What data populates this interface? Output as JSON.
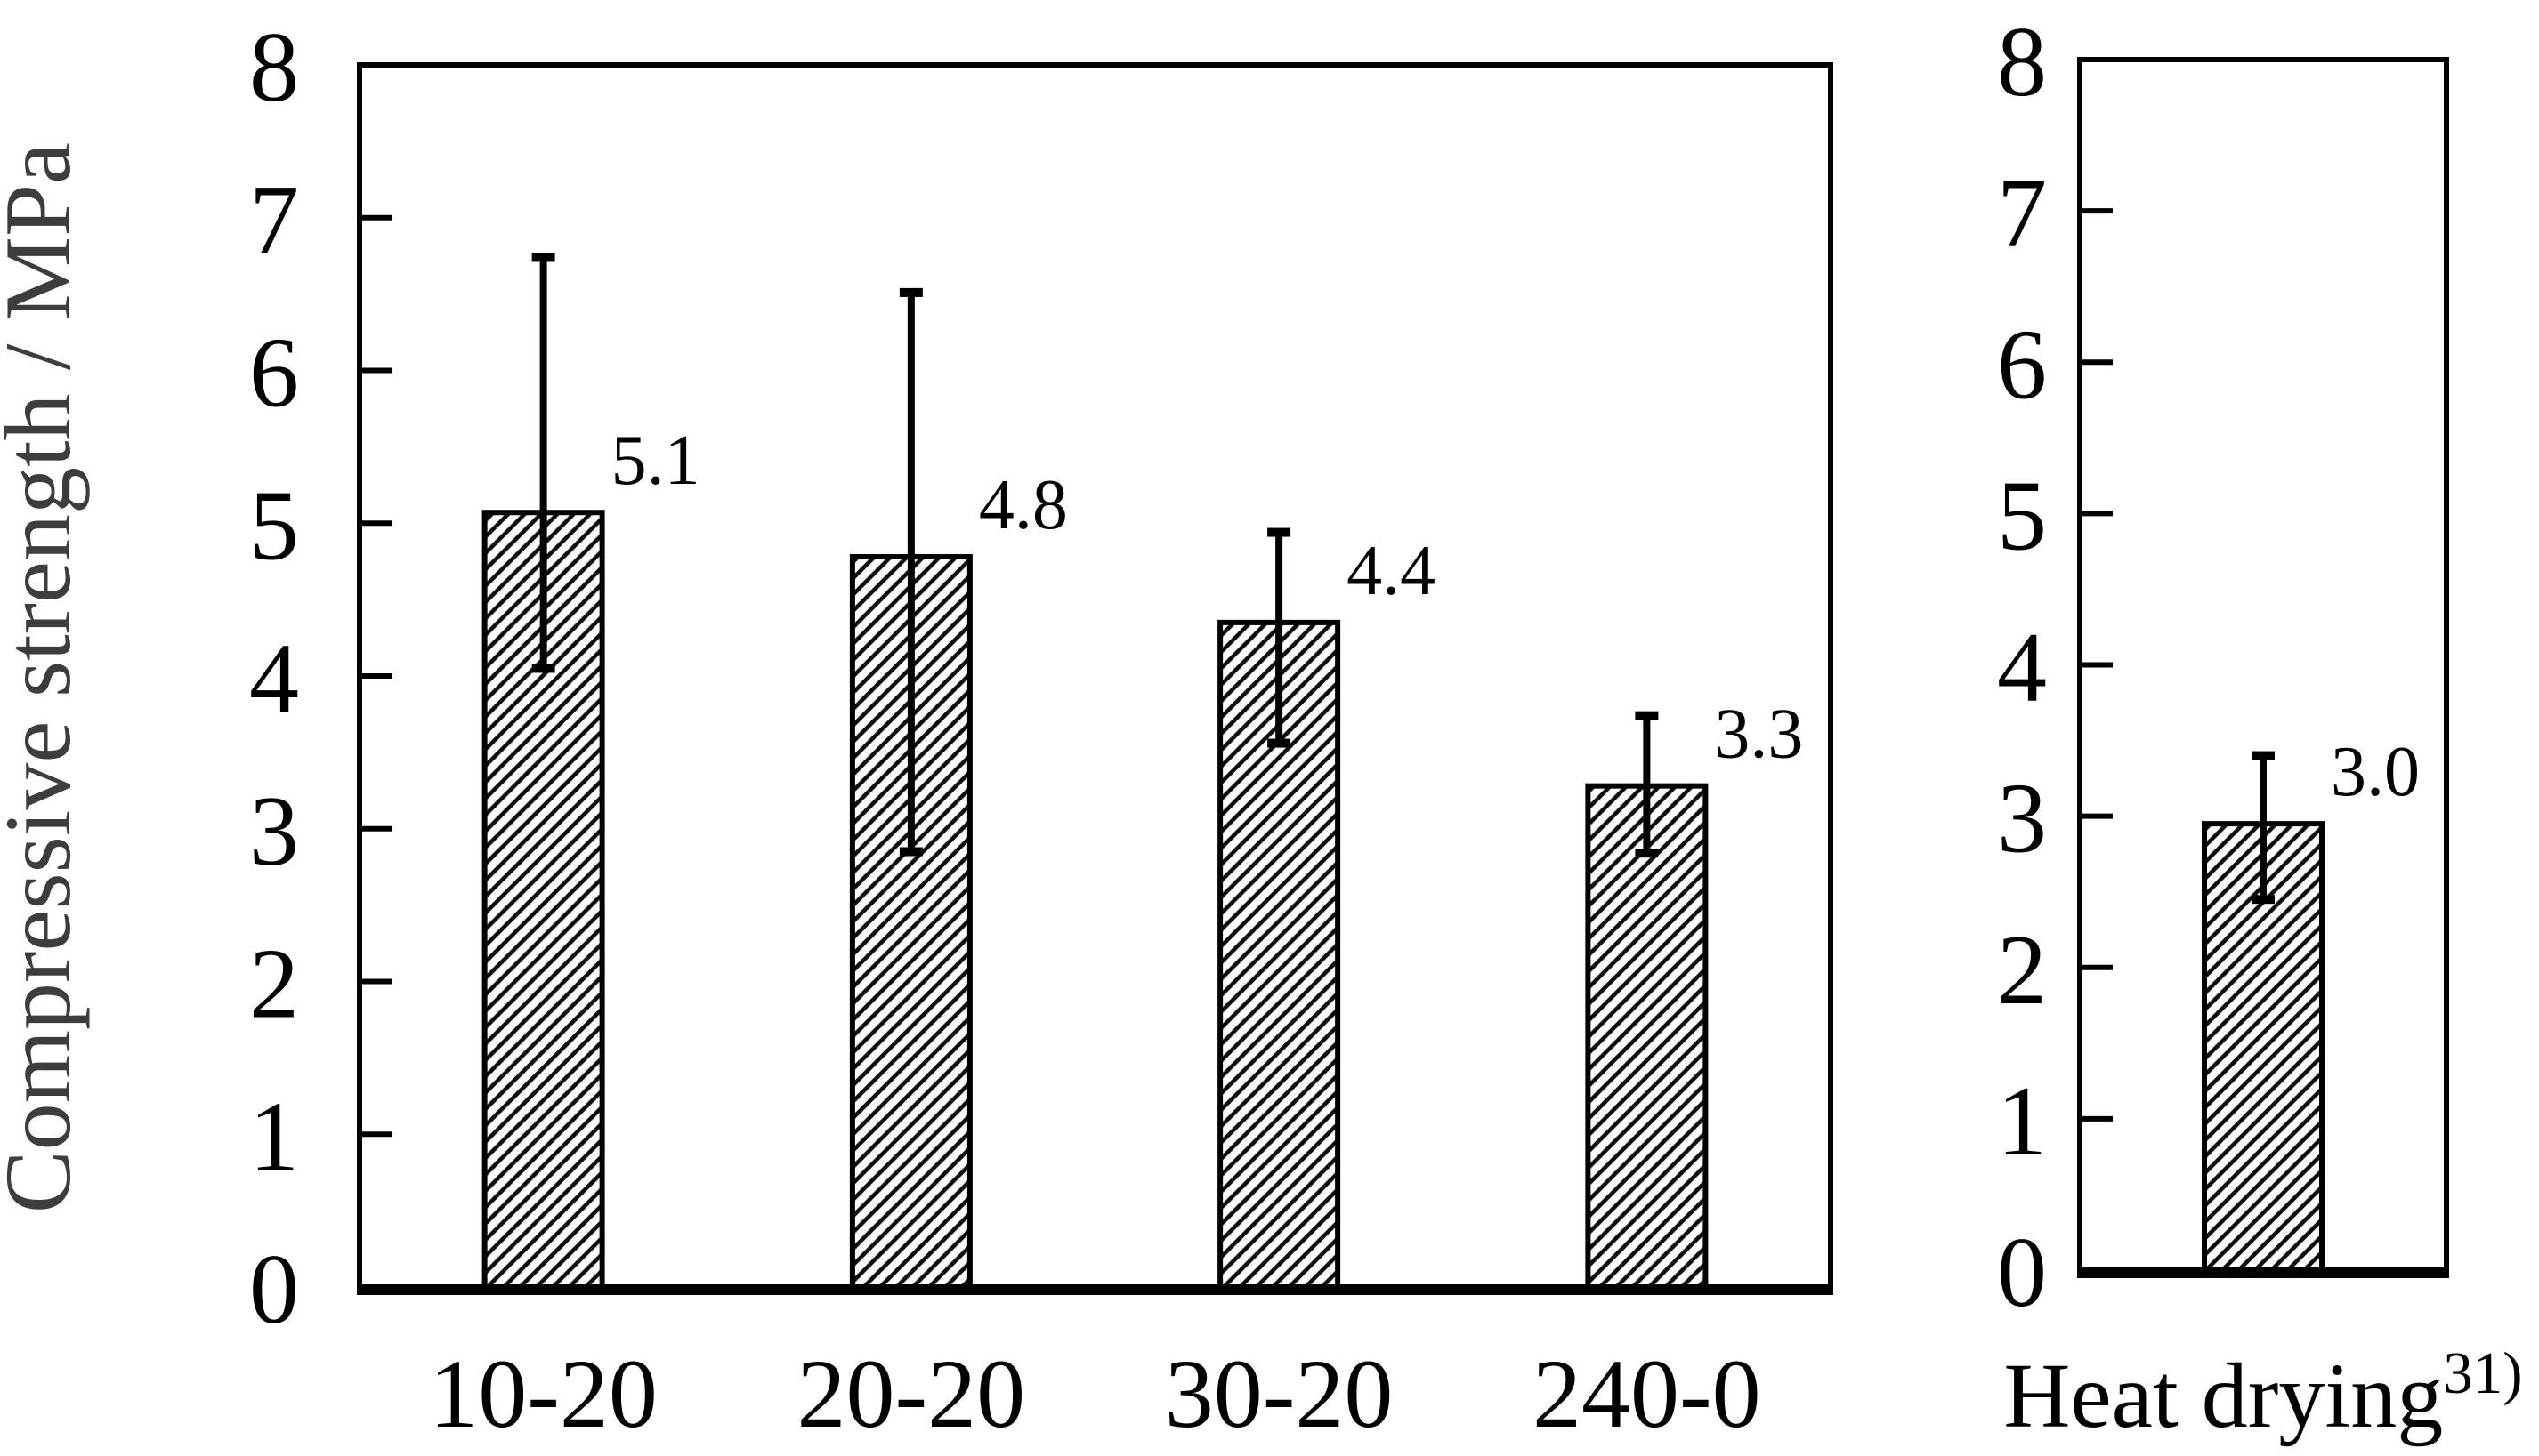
{
  "figure": {
    "background": "#ffffff",
    "axis_color": "#000000",
    "ylabel_color": "#3d3d3d",
    "hatch_style": "diagonal-forward-slash"
  },
  "chart_data": [
    {
      "type": "bar",
      "title": "",
      "ylabel": "Compressive strength / MPa",
      "xlabel": "",
      "ylim": [
        0,
        8
      ],
      "yticks": [
        0,
        1,
        2,
        3,
        4,
        5,
        6,
        7,
        8
      ],
      "grid": false,
      "legend": null,
      "categories": [
        "10-20",
        "20-20",
        "30-20",
        "240-0"
      ],
      "values": [
        5.07,
        4.78,
        4.35,
        3.28
      ],
      "bar_labels": [
        "5.1",
        "4.8",
        "4.4",
        "3.3"
      ],
      "error_high": [
        6.74,
        6.51,
        4.94,
        3.74
      ],
      "error_low": [
        4.05,
        2.85,
        3.56,
        2.84
      ]
    },
    {
      "type": "bar",
      "title": "",
      "ylabel": "",
      "xlabel": "",
      "ylim": [
        0,
        8
      ],
      "yticks": [
        0,
        1,
        2,
        3,
        4,
        5,
        6,
        7,
        8
      ],
      "grid": false,
      "legend": null,
      "categories": [
        {
          "label": "Heat drying",
          "superscript": "31)"
        }
      ],
      "values": [
        2.95
      ],
      "bar_labels": [
        "3.0"
      ],
      "error_high": [
        3.4
      ],
      "error_low": [
        2.45
      ]
    }
  ]
}
